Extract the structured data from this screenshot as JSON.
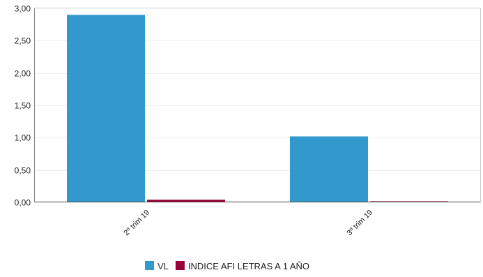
{
  "chart_data": {
    "type": "bar",
    "title": "",
    "xlabel": "",
    "ylabel": "",
    "categories": [
      "2º trim 19",
      "3º trim 19"
    ],
    "series": [
      {
        "name": "VL",
        "color": "#3399cc",
        "values": [
          2.9,
          1.02
        ]
      },
      {
        "name": "INDICE AFI LETRAS A 1 AÑO",
        "color": "#990033",
        "values": [
          0.04,
          0.005
        ]
      }
    ],
    "ylim": [
      0,
      3
    ],
    "yticks": [
      "0,00",
      "0,50",
      "1,00",
      "1,50",
      "2,00",
      "2,50",
      "3,00"
    ],
    "grid": true,
    "legend_position": "bottom-center"
  }
}
